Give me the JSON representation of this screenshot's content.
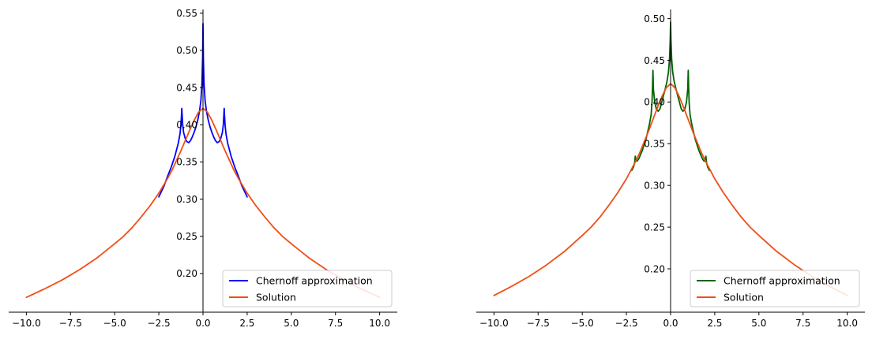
{
  "chart_data": [
    {
      "type": "line",
      "title": "",
      "xlabel": "",
      "ylabel": "",
      "xlim": [
        -11.0,
        11.0
      ],
      "ylim": [
        0.148,
        0.555
      ],
      "xticks": [
        -10.0,
        -7.5,
        -5.0,
        -2.5,
        0.0,
        2.5,
        5.0,
        7.5,
        10.0
      ],
      "xtick_labels": [
        "−10.0",
        "−7.5",
        "−5.0",
        "−2.5",
        "0.0",
        "2.5",
        "5.0",
        "7.5",
        "10.0"
      ],
      "yticks": [
        0.2,
        0.25,
        0.3,
        0.35,
        0.4,
        0.45,
        0.5,
        0.55
      ],
      "ytick_labels": [
        "0.20",
        "0.25",
        "0.30",
        "0.35",
        "0.40",
        "0.45",
        "0.50",
        "0.55"
      ],
      "spines": "centered-y-axis-bottom-x-axis",
      "grid": false,
      "legend_position": "lower-right",
      "series": [
        {
          "name": "Chernoff approximation",
          "color": "#0000ff",
          "x": [
            -2.5,
            -2.4,
            -2.2,
            -2.0,
            -1.8,
            -1.6,
            -1.4,
            -1.3,
            -1.25,
            -1.22,
            -1.2,
            -1.15,
            -1.1,
            -1.0,
            -0.9,
            -0.8,
            -0.7,
            -0.6,
            -0.5,
            -0.4,
            -0.3,
            -0.2,
            -0.12,
            -0.06,
            -0.02,
            0.0,
            0.02,
            0.06,
            0.12,
            0.2,
            0.3,
            0.4,
            0.5,
            0.6,
            0.7,
            0.8,
            0.9,
            1.0,
            1.1,
            1.15,
            1.2,
            1.22,
            1.25,
            1.3,
            1.4,
            1.6,
            1.8,
            2.0,
            2.2,
            2.4,
            2.5
          ],
          "y": [
            0.303,
            0.308,
            0.318,
            0.331,
            0.343,
            0.357,
            0.375,
            0.388,
            0.4,
            0.412,
            0.422,
            0.4,
            0.39,
            0.381,
            0.377,
            0.376,
            0.379,
            0.384,
            0.39,
            0.397,
            0.406,
            0.418,
            0.432,
            0.455,
            0.49,
            0.536,
            0.49,
            0.455,
            0.432,
            0.418,
            0.406,
            0.397,
            0.39,
            0.384,
            0.379,
            0.376,
            0.377,
            0.381,
            0.39,
            0.4,
            0.422,
            0.412,
            0.4,
            0.388,
            0.375,
            0.357,
            0.343,
            0.331,
            0.318,
            0.308,
            0.303
          ]
        },
        {
          "name": "Solution",
          "color": "#f04e16",
          "x": [
            -10.0,
            -9.0,
            -8.0,
            -7.0,
            -6.0,
            -5.0,
            -4.5,
            -4.0,
            -3.5,
            -3.0,
            -2.5,
            -2.0,
            -1.75,
            -1.5,
            -1.25,
            -1.0,
            -0.75,
            -0.5,
            -0.25,
            0.0,
            0.25,
            0.5,
            0.75,
            1.0,
            1.25,
            1.5,
            1.75,
            2.0,
            2.5,
            3.0,
            3.5,
            4.0,
            4.5,
            5.0,
            6.0,
            7.0,
            8.0,
            9.0,
            10.0
          ],
          "y": [
            0.168,
            0.179,
            0.191,
            0.205,
            0.221,
            0.24,
            0.25,
            0.262,
            0.276,
            0.291,
            0.308,
            0.328,
            0.339,
            0.352,
            0.365,
            0.379,
            0.393,
            0.406,
            0.417,
            0.422,
            0.417,
            0.406,
            0.393,
            0.379,
            0.365,
            0.352,
            0.339,
            0.328,
            0.308,
            0.291,
            0.276,
            0.262,
            0.25,
            0.24,
            0.221,
            0.205,
            0.191,
            0.179,
            0.168
          ]
        }
      ]
    },
    {
      "type": "line",
      "title": "",
      "xlabel": "",
      "ylabel": "",
      "xlim": [
        -11.0,
        11.0
      ],
      "ylim": [
        0.148,
        0.511
      ],
      "xticks": [
        -10.0,
        -7.5,
        -5.0,
        -2.5,
        0.0,
        2.5,
        5.0,
        7.5,
        10.0
      ],
      "xtick_labels": [
        "−10.0",
        "−7.5",
        "−5.0",
        "−2.5",
        "0.0",
        "2.5",
        "5.0",
        "7.5",
        "10.0"
      ],
      "yticks": [
        0.2,
        0.25,
        0.3,
        0.35,
        0.4,
        0.45,
        0.5
      ],
      "ytick_labels": [
        "0.20",
        "0.25",
        "0.30",
        "0.35",
        "0.40",
        "0.45",
        "0.50"
      ],
      "spines": "centered-y-axis-bottom-x-axis",
      "grid": false,
      "legend_position": "lower-right",
      "series": [
        {
          "name": "Chernoff approximation",
          "color": "#006400",
          "x": [
            -2.2,
            -2.1,
            -2.05,
            -2.02,
            -2.0,
            -1.95,
            -1.9,
            -1.8,
            -1.6,
            -1.4,
            -1.2,
            -1.1,
            -1.05,
            -1.02,
            -1.0,
            -0.97,
            -0.9,
            -0.8,
            -0.7,
            -0.6,
            -0.5,
            -0.4,
            -0.3,
            -0.2,
            -0.12,
            -0.06,
            -0.02,
            0.0,
            0.02,
            0.06,
            0.12,
            0.2,
            0.3,
            0.4,
            0.5,
            0.6,
            0.7,
            0.8,
            0.9,
            0.97,
            1.0,
            1.02,
            1.05,
            1.1,
            1.2,
            1.4,
            1.6,
            1.8,
            1.9,
            1.95,
            2.0,
            2.02,
            2.05,
            2.1,
            2.2
          ],
          "y": [
            0.318,
            0.322,
            0.326,
            0.33,
            0.335,
            0.33,
            0.329,
            0.332,
            0.342,
            0.355,
            0.373,
            0.385,
            0.4,
            0.42,
            0.438,
            0.415,
            0.4,
            0.391,
            0.389,
            0.392,
            0.4,
            0.408,
            0.416,
            0.425,
            0.436,
            0.452,
            0.475,
            0.496,
            0.475,
            0.452,
            0.436,
            0.425,
            0.416,
            0.408,
            0.4,
            0.392,
            0.389,
            0.391,
            0.4,
            0.415,
            0.438,
            0.42,
            0.4,
            0.385,
            0.373,
            0.355,
            0.342,
            0.332,
            0.329,
            0.33,
            0.335,
            0.33,
            0.326,
            0.322,
            0.318
          ]
        },
        {
          "name": "Solution",
          "color": "#f04e16",
          "x": [
            -10.0,
            -9.0,
            -8.0,
            -7.0,
            -6.0,
            -5.0,
            -4.5,
            -4.0,
            -3.5,
            -3.0,
            -2.5,
            -2.0,
            -1.75,
            -1.5,
            -1.25,
            -1.0,
            -0.75,
            -0.5,
            -0.25,
            0.0,
            0.25,
            0.5,
            0.75,
            1.0,
            1.25,
            1.5,
            1.75,
            2.0,
            2.5,
            3.0,
            3.5,
            4.0,
            4.5,
            5.0,
            6.0,
            7.0,
            8.0,
            9.0,
            10.0
          ],
          "y": [
            0.168,
            0.179,
            0.191,
            0.205,
            0.221,
            0.24,
            0.25,
            0.262,
            0.276,
            0.291,
            0.308,
            0.328,
            0.339,
            0.352,
            0.365,
            0.379,
            0.393,
            0.406,
            0.417,
            0.422,
            0.417,
            0.406,
            0.393,
            0.379,
            0.365,
            0.352,
            0.339,
            0.328,
            0.308,
            0.291,
            0.276,
            0.262,
            0.25,
            0.24,
            0.221,
            0.205,
            0.191,
            0.179,
            0.168
          ]
        }
      ]
    }
  ]
}
